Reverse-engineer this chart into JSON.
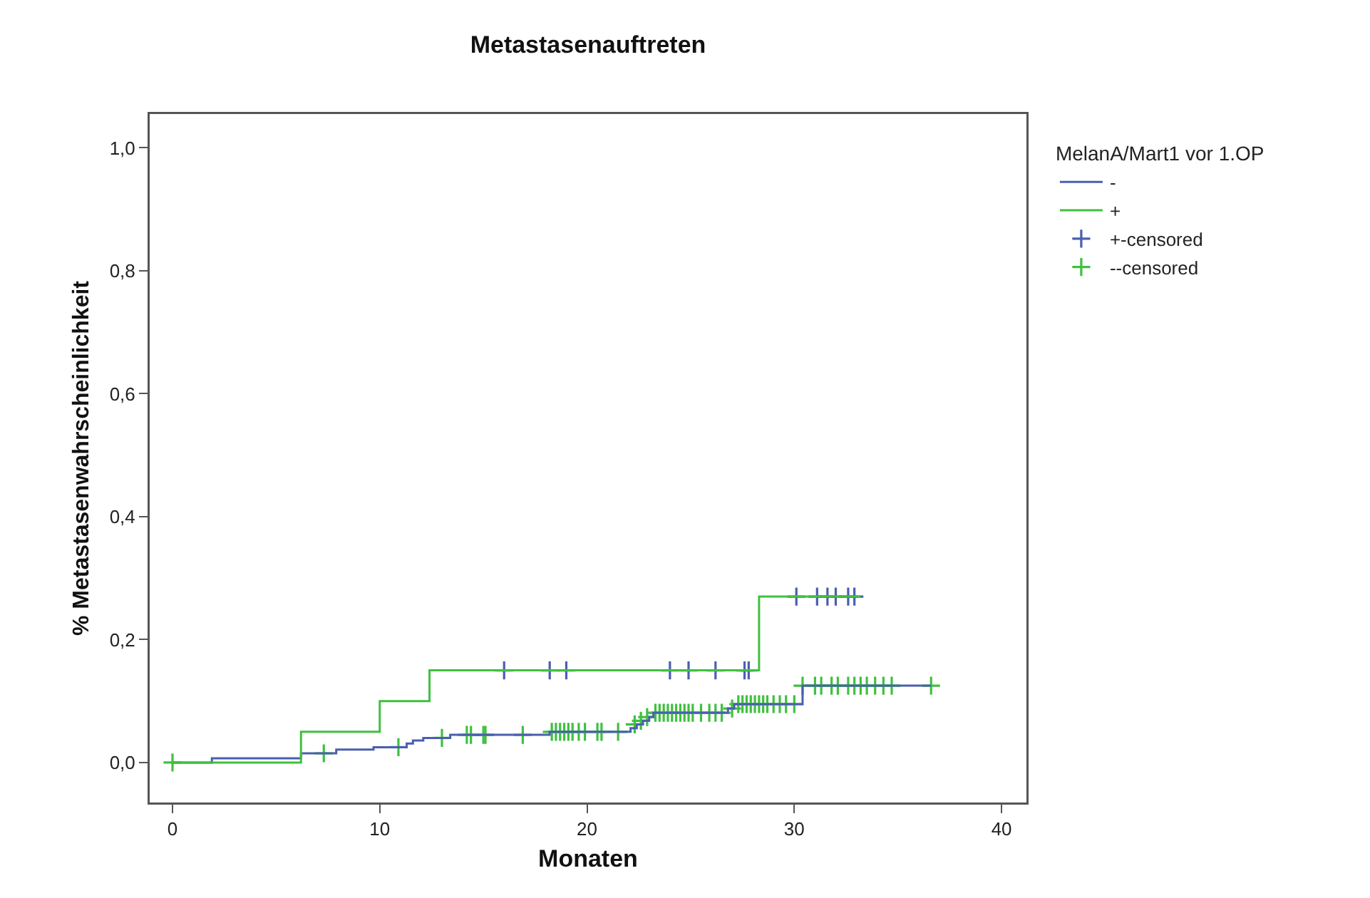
{
  "chart_data": {
    "type": "step",
    "title": "Metastasenauftreten",
    "xlabel": "Monaten",
    "ylabel": "% Metastasenwahrscheinlichkeit",
    "legend_title": "MelanA/Mart1 vor 1.OP",
    "legend": "top right",
    "grid": false,
    "xlim": [
      -1.1,
      41.2
    ],
    "xticks": [
      0,
      10,
      20,
      30,
      40
    ],
    "ylim": [
      -0.065,
      1.055
    ],
    "yticks": [
      {
        "value": 0,
        "label": "0,0"
      },
      {
        "value": 0.2,
        "label": "0,2"
      },
      {
        "value": 0.4,
        "label": "0,4"
      },
      {
        "value": 0.6,
        "label": "0,6"
      },
      {
        "value": 0.8,
        "label": "0,8"
      },
      {
        "value": 1,
        "label": "1,0"
      }
    ],
    "series": [
      {
        "name": "-",
        "color": "#4a5fb0",
        "x": [
          0,
          1.9,
          6.2,
          7.9,
          9.7,
          11.3,
          11.6,
          12.1,
          13.4,
          18.2,
          22.1,
          22.4,
          22.7,
          23.0,
          23.2,
          26.8,
          27.1,
          30.4,
          36.6
        ],
        "values": [
          0,
          0.007,
          0.015,
          0.021,
          0.025,
          0.031,
          0.036,
          0.04,
          0.045,
          0.05,
          0.056,
          0.062,
          0.068,
          0.074,
          0.081,
          0.088,
          0.095,
          0.125,
          0.125
        ]
      },
      {
        "name": "+",
        "color": "#40c040",
        "x": [
          0,
          6.2,
          10,
          12.4,
          28.3,
          33.2
        ],
        "values": [
          0,
          0.05,
          0.1,
          0.15,
          0.27,
          0.27
        ]
      },
      {
        "name": "+-censored",
        "type": "scatter",
        "marker": "cross",
        "color": "#4a5fb0",
        "x": [
          16.0,
          18.2,
          19.0,
          24.0,
          24.9,
          26.2,
          27.6,
          27.8,
          30.1,
          31.1,
          31.6,
          32.0,
          32.6,
          32.9
        ],
        "values": [
          0.15,
          0.15,
          0.15,
          0.15,
          0.15,
          0.15,
          0.15,
          0.15,
          0.27,
          0.27,
          0.27,
          0.27,
          0.27,
          0.27
        ]
      },
      {
        "name": "--censored",
        "type": "scatter",
        "marker": "cross",
        "color": "#40c040",
        "x": [
          0,
          7.3,
          10.9,
          13.0,
          14.2,
          14.4,
          15.0,
          15.1,
          16.9,
          18.3,
          18.5,
          18.7,
          18.9,
          19.1,
          19.3,
          19.6,
          19.9,
          20.5,
          20.7,
          21.5,
          22.3,
          22.6,
          22.9,
          23.3,
          23.5,
          23.7,
          23.9,
          24.1,
          24.3,
          24.5,
          24.7,
          24.9,
          25.1,
          25.5,
          25.9,
          26.2,
          26.5,
          27.0,
          27.3,
          27.5,
          27.7,
          27.9,
          28.1,
          28.3,
          28.5,
          28.7,
          29.0,
          29.3,
          29.6,
          30.0,
          30.4,
          31.0,
          31.3,
          31.8,
          32.1,
          32.6,
          32.9,
          33.2,
          33.5,
          33.9,
          34.3,
          34.7,
          36.6
        ],
        "values": [
          0,
          0.015,
          0.025,
          0.04,
          0.045,
          0.045,
          0.045,
          0.045,
          0.045,
          0.05,
          0.05,
          0.05,
          0.05,
          0.05,
          0.05,
          0.05,
          0.05,
          0.05,
          0.05,
          0.05,
          0.062,
          0.068,
          0.074,
          0.081,
          0.081,
          0.081,
          0.081,
          0.081,
          0.081,
          0.081,
          0.081,
          0.081,
          0.081,
          0.081,
          0.081,
          0.081,
          0.081,
          0.088,
          0.095,
          0.095,
          0.095,
          0.095,
          0.095,
          0.095,
          0.095,
          0.095,
          0.095,
          0.095,
          0.095,
          0.095,
          0.125,
          0.125,
          0.125,
          0.125,
          0.125,
          0.125,
          0.125,
          0.125,
          0.125,
          0.125,
          0.125,
          0.125,
          0.125
        ]
      }
    ]
  }
}
